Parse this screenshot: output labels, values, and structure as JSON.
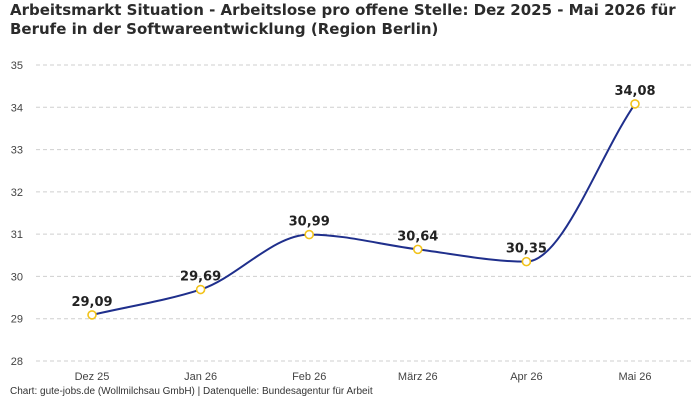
{
  "title_lines": [
    "Arbeitsmarkt Situation - Arbeitslose pro offene Stelle: Dez 2025 - Mai 2026 für",
    "Berufe in der Softwareentwicklung (Region Berlin)"
  ],
  "footer": "Chart: gute-jobs.de (Wollmilchsau GmbH) | Datenquelle: Bundesagentur für Arbeit",
  "chart_data": {
    "type": "line",
    "title": "Arbeitsmarkt Situation - Arbeitslose pro offene Stelle: Dez 2025 - Mai 2026 für Berufe in der Softwareentwicklung (Region Berlin)",
    "categories": [
      "Dez 25",
      "Jan 26",
      "Feb 26",
      "März 26",
      "Apr 26",
      "Mai 26"
    ],
    "values": [
      29.09,
      29.69,
      30.99,
      30.64,
      30.35,
      34.08
    ],
    "value_labels": [
      "29,09",
      "29,69",
      "30,99",
      "30,64",
      "30,35",
      "34,08"
    ],
    "ylim": [
      28,
      35
    ],
    "yticks": [
      "28",
      "29",
      "30",
      "31",
      "32",
      "33",
      "34",
      "35"
    ],
    "xlabel": "",
    "ylabel": "",
    "grid": true,
    "smooth": true,
    "colors": {
      "line": "#1f2f8c",
      "marker_stroke": "#f2c31b",
      "marker_fill": "#ffffff",
      "grid": "#cfcfcf",
      "axis_text": "#444444"
    }
  }
}
